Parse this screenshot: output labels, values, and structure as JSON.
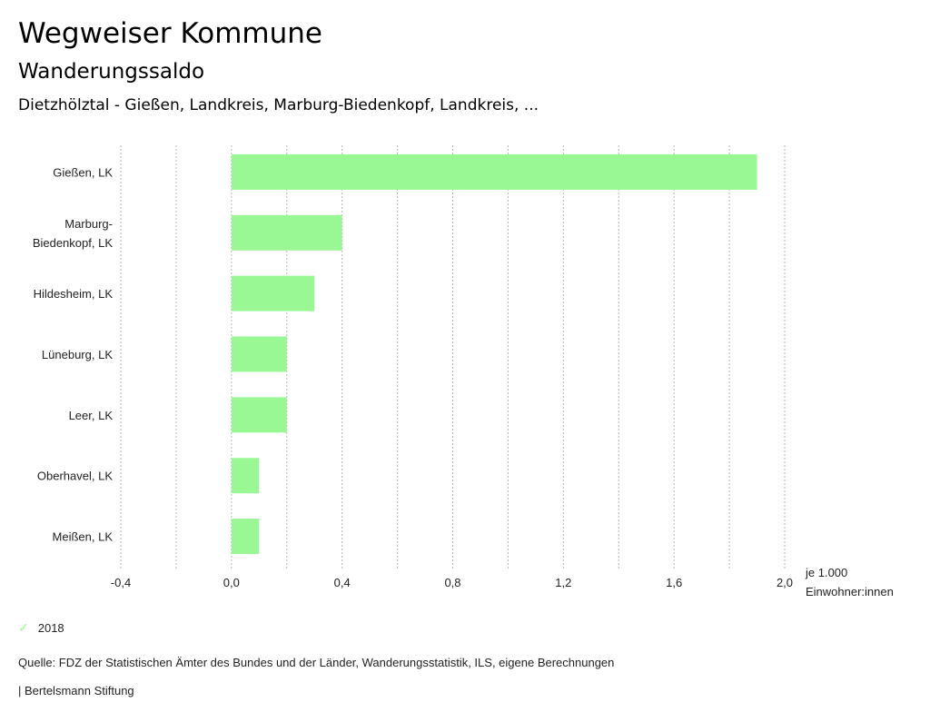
{
  "header": {
    "title": "Wegweiser Kommune",
    "subtitle": "Wanderungssaldo",
    "region": "Dietzhölztal - Gießen, Landkreis, Marburg-Biedenkopf, Landkreis, ..."
  },
  "chart_data": {
    "type": "bar",
    "orientation": "horizontal",
    "categories": [
      [
        "Gießen, LK"
      ],
      [
        "Marburg-",
        "Biedenkopf, LK"
      ],
      [
        "Hildesheim, LK"
      ],
      [
        "Lüneburg, LK"
      ],
      [
        "Leer, LK"
      ],
      [
        "Oberhavel, LK"
      ],
      [
        "Meißen, LK"
      ]
    ],
    "series": [
      {
        "name": "2018",
        "values": [
          1.9,
          0.4,
          0.3,
          0.2,
          0.2,
          0.1,
          0.1
        ],
        "color": "#9af894"
      }
    ],
    "xlim": [
      -0.4,
      2.0
    ],
    "xticks": [
      -0.4,
      0.0,
      0.4,
      0.8,
      1.2,
      1.6,
      2.0
    ],
    "xtick_labels": [
      "-0,4",
      "0,0",
      "0,4",
      "0,8",
      "1,2",
      "1,6",
      "2,0"
    ],
    "gridlines": [
      -0.4,
      -0.2,
      0.0,
      0.2,
      0.4,
      0.6,
      0.8,
      1.0,
      1.2,
      1.4,
      1.6,
      1.8,
      2.0
    ],
    "xlabel": [
      "je 1.000",
      "Einwohner:innen"
    ],
    "grid": true,
    "legend_placement": "bottom-left"
  },
  "legend": {
    "icon": "check-icon",
    "label": "2018"
  },
  "footer": {
    "source": "Quelle: FDZ der Statistischen Ämter des Bundes und der Länder, Wanderungsstatistik, ILS, eigene Berechnungen",
    "brand": "| Bertelsmann Stiftung"
  }
}
